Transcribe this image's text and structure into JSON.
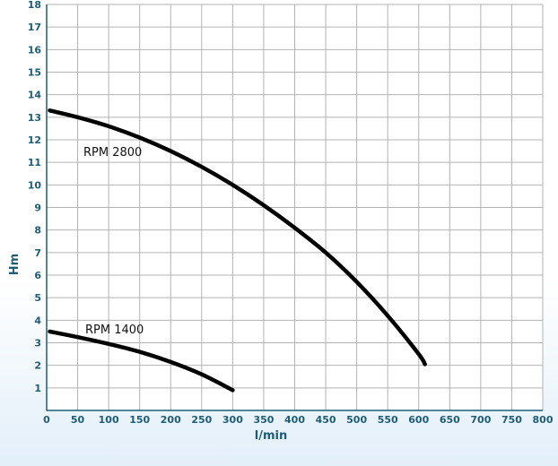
{
  "chart_data": {
    "type": "line",
    "xlabel": "l/min",
    "ylabel": "Hm",
    "xlim": [
      0,
      800
    ],
    "ylim": [
      0,
      18
    ],
    "x_ticks": [
      0,
      50,
      100,
      150,
      200,
      250,
      300,
      350,
      400,
      450,
      500,
      550,
      600,
      650,
      700,
      750,
      800
    ],
    "y_ticks": [
      1,
      2,
      3,
      4,
      5,
      6,
      7,
      8,
      9,
      10,
      11,
      12,
      13,
      14,
      15,
      16,
      17,
      18
    ],
    "grid": true,
    "legend": "none",
    "series": [
      {
        "name": "RPM 2800",
        "x": [
          5,
          50,
          100,
          150,
          200,
          250,
          300,
          350,
          400,
          450,
          500,
          550,
          600,
          610
        ],
        "y": [
          13.3,
          13.0,
          12.6,
          12.1,
          11.5,
          10.8,
          10.0,
          9.1,
          8.1,
          7.0,
          5.7,
          4.2,
          2.5,
          2.05
        ]
      },
      {
        "name": "RPM 1400",
        "x": [
          5,
          50,
          100,
          150,
          200,
          250,
          300
        ],
        "y": [
          3.5,
          3.25,
          2.95,
          2.6,
          2.15,
          1.6,
          0.9
        ]
      }
    ],
    "series_label_text": [
      "RPM 2800",
      "RPM 1400"
    ]
  }
}
